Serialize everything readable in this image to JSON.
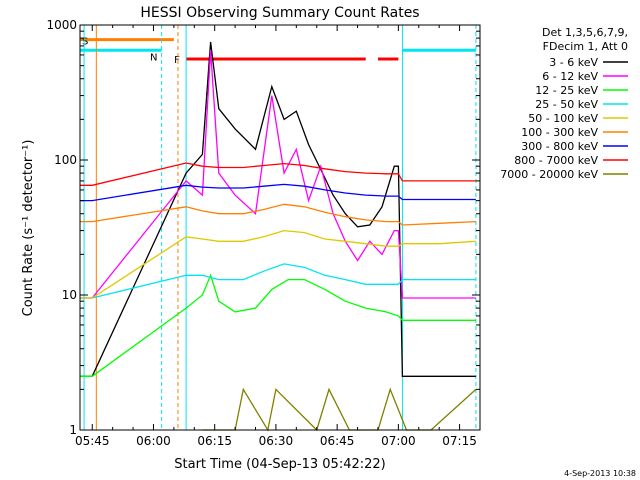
{
  "chart_data": {
    "type": "line",
    "title": "HESSI Observing Summary Count Rates",
    "xlabel": "Start Time (04-Sep-13 05:42:22)",
    "ylabel": "Count Rate (s⁻¹ detector⁻¹)",
    "y_scale": "log",
    "ylim": [
      1,
      1000
    ],
    "xlim": [
      "05:42",
      "07:20"
    ],
    "x_ticks": [
      "05:45",
      "06:00",
      "06:15",
      "06:30",
      "06:45",
      "07:00",
      "07:15"
    ],
    "y_ticks": [
      1,
      10,
      100,
      1000
    ],
    "grid": false,
    "legend_header": [
      "Det 1,3,5,6,7,9,",
      "FDecim 1, Att 0"
    ],
    "legend_position": "right",
    "timestamp": "4-Sep-2013 10:38",
    "flags": [
      {
        "label": "S",
        "color": "#ff8000",
        "level": 780,
        "start": "05:42",
        "end": "06:05"
      },
      {
        "label": "N",
        "color": "#00e5ee",
        "level": 650,
        "start": "05:42",
        "end": "06:02"
      },
      {
        "label": "N",
        "color": "#00e5ee",
        "level": 650,
        "start": "07:01",
        "end": "07:19"
      },
      {
        "label": "F",
        "color": "#ff0000",
        "level": 560,
        "start": "06:08",
        "end": "06:52"
      },
      {
        "label": "F",
        "color": "#ff0000",
        "level": 560,
        "start": "06:55",
        "end": "07:00"
      }
    ],
    "vlines": [
      {
        "time": "05:43",
        "color": "#00e5ee",
        "style": "solid"
      },
      {
        "time": "05:46",
        "color": "#ff8000",
        "style": "solid"
      },
      {
        "time": "06:02",
        "color": "#00e5ee",
        "style": "dashed"
      },
      {
        "time": "06:06",
        "color": "#ff8000",
        "style": "dashed"
      },
      {
        "time": "06:08",
        "color": "#00e5ee",
        "style": "solid"
      },
      {
        "time": "07:01",
        "color": "#00e5ee",
        "style": "solid"
      },
      {
        "time": "07:19",
        "color": "#00e5ee",
        "style": "dashed"
      }
    ],
    "series": [
      {
        "name": "3 - 6 keV",
        "color": "#000000",
        "x": [
          "05:42",
          "05:45",
          "06:08",
          "06:12",
          "06:14",
          "06:16",
          "06:20",
          "06:25",
          "06:29",
          "06:32",
          "06:35",
          "06:38",
          "06:41",
          "06:44",
          "06:47",
          "06:50",
          "06:53",
          "06:56",
          "06:59",
          "07:00",
          "07:01",
          "07:19"
        ],
        "y": [
          2.5,
          2.5,
          80,
          110,
          750,
          240,
          170,
          120,
          350,
          200,
          230,
          130,
          85,
          55,
          40,
          32,
          33,
          45,
          90,
          90,
          2.5,
          2.5
        ]
      },
      {
        "name": "6 - 12 keV",
        "color": "#ff00ff",
        "x": [
          "05:42",
          "05:45",
          "06:08",
          "06:12",
          "06:14",
          "06:16",
          "06:20",
          "06:25",
          "06:29",
          "06:32",
          "06:35",
          "06:38",
          "06:41",
          "06:44",
          "06:47",
          "06:50",
          "06:53",
          "06:56",
          "06:59",
          "07:00",
          "07:01",
          "07:19"
        ],
        "y": [
          9.5,
          9.5,
          70,
          55,
          650,
          80,
          55,
          40,
          300,
          80,
          120,
          50,
          90,
          40,
          25,
          18,
          25,
          20,
          30,
          30,
          9.5,
          9.5
        ]
      },
      {
        "name": "12 - 25 keV",
        "color": "#00ff00",
        "x": [
          "05:42",
          "05:45",
          "06:08",
          "06:12",
          "06:14",
          "06:16",
          "06:20",
          "06:25",
          "06:29",
          "06:33",
          "06:37",
          "06:42",
          "06:47",
          "06:52",
          "06:57",
          "07:00",
          "07:01",
          "07:19"
        ],
        "y": [
          2.5,
          2.5,
          8,
          10,
          14,
          9,
          7.5,
          8,
          11,
          13,
          13,
          11,
          9,
          8,
          7.5,
          7,
          6.5,
          6.5
        ]
      },
      {
        "name": "25 - 50 keV",
        "color": "#00e5ee",
        "x": [
          "05:42",
          "05:45",
          "06:08",
          "06:12",
          "06:16",
          "06:22",
          "06:27",
          "06:32",
          "06:37",
          "06:42",
          "06:47",
          "06:52",
          "06:57",
          "07:00",
          "07:01",
          "07:10",
          "07:19"
        ],
        "y": [
          9.5,
          9.5,
          14,
          14,
          13,
          13,
          15,
          17,
          16,
          14,
          13,
          12,
          12,
          12,
          13,
          13,
          13
        ]
      },
      {
        "name": "50 - 100 keV",
        "color": "#e0c800",
        "x": [
          "05:42",
          "05:45",
          "06:08",
          "06:12",
          "06:16",
          "06:22",
          "06:27",
          "06:32",
          "06:37",
          "06:42",
          "06:47",
          "06:52",
          "06:57",
          "07:00",
          "07:01",
          "07:10",
          "07:19"
        ],
        "y": [
          9.5,
          9.5,
          27,
          26,
          25,
          25,
          27,
          30,
          29,
          26,
          25,
          24,
          23,
          23,
          24,
          24,
          25
        ]
      },
      {
        "name": "100 - 300 keV",
        "color": "#ff8000",
        "x": [
          "05:42",
          "05:45",
          "06:08",
          "06:12",
          "06:16",
          "06:22",
          "06:27",
          "06:32",
          "06:37",
          "06:42",
          "06:47",
          "06:52",
          "06:57",
          "07:00",
          "07:01",
          "07:10",
          "07:19"
        ],
        "y": [
          35,
          35,
          45,
          42,
          40,
          40,
          43,
          47,
          45,
          41,
          38,
          36,
          35,
          35,
          33,
          34,
          35
        ]
      },
      {
        "name": "300 - 800 keV",
        "color": "#0000ff",
        "x": [
          "05:42",
          "05:45",
          "06:08",
          "06:12",
          "06:16",
          "06:22",
          "06:27",
          "06:32",
          "06:37",
          "06:42",
          "06:47",
          "06:52",
          "06:57",
          "07:00",
          "07:01",
          "07:10",
          "07:19"
        ],
        "y": [
          50,
          50,
          65,
          63,
          62,
          62,
          64,
          66,
          64,
          60,
          57,
          55,
          54,
          54,
          51,
          51,
          51
        ]
      },
      {
        "name": "800 - 7000 keV",
        "color": "#ff0000",
        "x": [
          "05:42",
          "05:45",
          "06:08",
          "06:12",
          "06:16",
          "06:22",
          "06:27",
          "06:32",
          "06:37",
          "06:42",
          "06:47",
          "06:52",
          "06:57",
          "07:00",
          "07:01",
          "07:10",
          "07:19"
        ],
        "y": [
          65,
          65,
          95,
          90,
          88,
          88,
          91,
          94,
          91,
          86,
          82,
          80,
          79,
          79,
          70,
          70,
          70
        ]
      },
      {
        "name": "7000 - 20000 keV",
        "color": "#808000",
        "x": [
          "06:12",
          "06:20",
          "06:22",
          "06:28",
          "06:30",
          "06:40",
          "06:43",
          "06:48",
          "06:50",
          "06:55",
          "06:58",
          "07:02",
          "07:08",
          "07:19"
        ],
        "y": [
          1,
          1,
          2,
          1,
          2,
          1,
          2,
          1,
          1,
          1,
          2,
          1,
          1,
          2
        ]
      }
    ]
  }
}
